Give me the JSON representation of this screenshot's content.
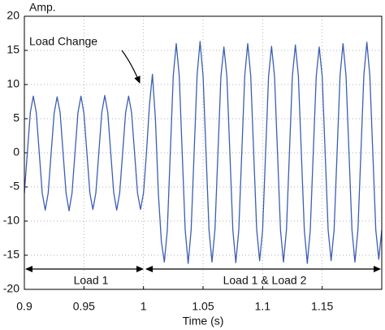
{
  "chart_data": {
    "type": "line",
    "y_label": "Amp.",
    "x_label": "Time (s)",
    "annotations": [
      "Load Change",
      "Load 1",
      "Load 1 & Load 2"
    ],
    "xlim": [
      0.9,
      1.2
    ],
    "ylim": [
      -20,
      20
    ],
    "xticks": [
      0.9,
      0.95,
      1,
      1.05,
      1.1,
      1.15
    ],
    "yticks": [
      -20,
      -15,
      -10,
      -5,
      0,
      5,
      10,
      15,
      20
    ],
    "grid": true,
    "x": [
      0.9,
      0.9025,
      0.905,
      0.9075,
      0.91,
      0.9125,
      0.915,
      0.9175,
      0.92,
      0.9225,
      0.925,
      0.9275,
      0.93,
      0.9325,
      0.935,
      0.9375,
      0.94,
      0.9425,
      0.945,
      0.9475,
      0.95,
      0.9525,
      0.955,
      0.9575,
      0.96,
      0.9625,
      0.965,
      0.9675,
      0.97,
      0.9725,
      0.975,
      0.9775,
      0.98,
      0.9825,
      0.985,
      0.9875,
      0.99,
      0.9925,
      0.995,
      0.9975,
      1,
      1.0025,
      1.005,
      1.0075,
      1.01,
      1.0125,
      1.015,
      1.0175,
      1.02,
      1.0225,
      1.025,
      1.0275,
      1.03,
      1.0325,
      1.035,
      1.0375,
      1.04,
      1.0425,
      1.045,
      1.0475,
      1.05,
      1.0525,
      1.055,
      1.0575,
      1.06,
      1.0625,
      1.065,
      1.0675,
      1.07,
      1.0725,
      1.075,
      1.0775,
      1.08,
      1.0825,
      1.085,
      1.0875,
      1.09,
      1.0925,
      1.095,
      1.0975,
      1.1,
      1.1025,
      1.105,
      1.1075,
      1.11,
      1.1125,
      1.115,
      1.1175,
      1.12,
      1.1225,
      1.125,
      1.1275,
      1.13,
      1.1325,
      1.135,
      1.1375,
      1.14,
      1.1425,
      1.145,
      1.1475,
      1.15,
      1.1525,
      1.155,
      1.1575,
      1.16,
      1.1625,
      1.165,
      1.1675,
      1.17,
      1.1725,
      1.175,
      1.1775,
      1.18,
      1.1825,
      1.185,
      1.1875,
      1.19,
      1.1925,
      1.195,
      1.1975,
      1.2
    ],
    "series": [
      {
        "color": "#3b5eb3",
        "values": [
          -5.9,
          0,
          5.9,
          8.3,
          5.9,
          0,
          -5.9,
          -8.4,
          -5.9,
          0,
          5.8,
          8.2,
          5.9,
          0,
          -5.9,
          -8.5,
          -5.9,
          0,
          5.9,
          8.3,
          5.8,
          0,
          -5.9,
          -8.3,
          -5.9,
          0,
          5.9,
          8.4,
          5.9,
          0,
          -5.8,
          -8.4,
          -5.9,
          0,
          5.9,
          8.3,
          5.9,
          0,
          -5.9,
          -8.3,
          -5.9,
          0,
          7,
          11.5,
          5,
          -6,
          -13,
          -16,
          -11.3,
          0,
          11.3,
          16,
          11.3,
          0,
          -11.3,
          -16.2,
          -11.3,
          0,
          11.4,
          16.3,
          11.3,
          0,
          -11.3,
          -16,
          -11.2,
          0,
          11.2,
          15.5,
          11.2,
          0,
          -11.3,
          -16.1,
          -11.3,
          0,
          11.3,
          16,
          11.3,
          0,
          -11.2,
          -15.8,
          -11.3,
          0,
          11.2,
          15.6,
          11.2,
          0,
          -11.3,
          -16,
          -11.3,
          0,
          11.3,
          15.8,
          11.3,
          0,
          -11.3,
          -16.2,
          -11.3,
          0,
          11.2,
          15.5,
          11.2,
          0,
          -11.3,
          -15.8,
          -11.3,
          0,
          11.3,
          16,
          11.3,
          0,
          -11.3,
          -16,
          -11.3,
          0,
          11.4,
          16.2,
          11.3,
          0,
          -11.3,
          -15.6,
          -11.3
        ]
      }
    ]
  }
}
